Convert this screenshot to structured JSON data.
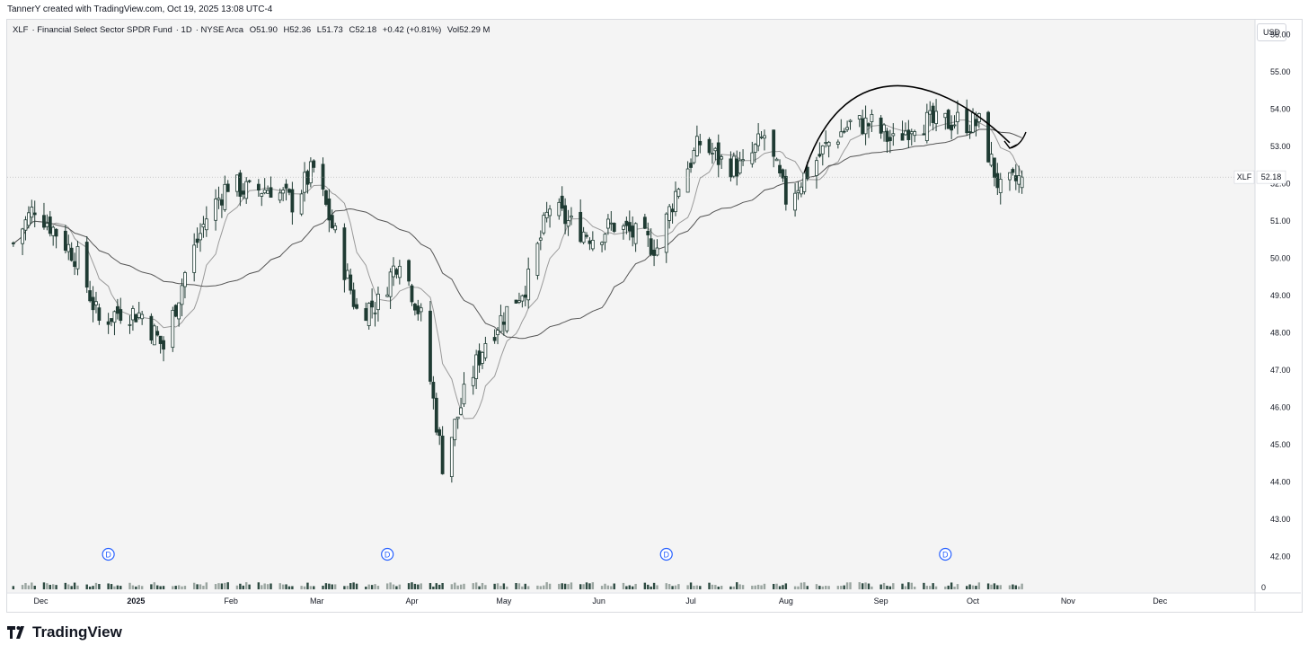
{
  "credit": "TannerY created with TradingView.com, Oct 19, 2025 13:08 UTC-4",
  "legend": {
    "symbol": "XLF",
    "name": "Financial Select Sector SPDR Fund",
    "interval": "1D",
    "exchange": "NYSE Arca",
    "open": "O51.90",
    "high": "H52.36",
    "low": "L51.73",
    "close": "C52.18",
    "change": "+0.42 (+0.81%)",
    "volume": "Vol52.29 M"
  },
  "currency_button": "USD",
  "price_badge": {
    "symbol": "XLF",
    "value": "52.18"
  },
  "brand": "TradingView",
  "dividend_marker_label": "D",
  "volume_axis_label": "0",
  "colors": {
    "up": "#ffffff",
    "down": "#1f3b33",
    "wick": "#1f3b33",
    "ma_fast": "#9a9a9a",
    "ma_slow": "#555555",
    "annotation": "#000000",
    "dividend": "#2962ff"
  },
  "chart_data": {
    "type": "candlestick",
    "series_name": "XLF",
    "ylim": [
      41.8,
      56.4
    ],
    "y_ticks": [
      "56.00",
      "55.00",
      "54.00",
      "53.00",
      "52.00",
      "51.00",
      "50.00",
      "49.00",
      "48.00",
      "47.00",
      "46.00",
      "45.00",
      "44.00",
      "43.00",
      "42.00"
    ],
    "x_ticks": [
      "Dec",
      "2025",
      "Feb",
      "Mar",
      "Apr",
      "May",
      "Jun",
      "Jul",
      "Aug",
      "Sep",
      "Oct",
      "Nov",
      "Dec"
    ],
    "x_tick_dates": [
      "2024-12-01",
      "2025-01-01",
      "2025-02-01",
      "2025-03-01",
      "2025-04-01",
      "2025-05-01",
      "2025-06-01",
      "2025-07-01",
      "2025-08-01",
      "2025-09-01",
      "2025-10-01",
      "2025-11-01",
      "2025-12-01"
    ],
    "x_range": [
      "2024-11-20",
      "2026-01-01"
    ],
    "last_close": 52.18,
    "closes_weekly": [
      {
        "date": "2024-11-22",
        "close": 50.4
      },
      {
        "date": "2024-11-29",
        "close": 51.4
      },
      {
        "date": "2024-12-06",
        "close": 50.7
      },
      {
        "date": "2024-12-13",
        "close": 50.0
      },
      {
        "date": "2024-12-20",
        "close": 48.3
      },
      {
        "date": "2024-12-27",
        "close": 48.6
      },
      {
        "date": "2025-01-03",
        "close": 48.5
      },
      {
        "date": "2025-01-10",
        "close": 47.6
      },
      {
        "date": "2025-01-17",
        "close": 49.6
      },
      {
        "date": "2025-01-24",
        "close": 51.1
      },
      {
        "date": "2025-01-31",
        "close": 52.0
      },
      {
        "date": "2025-02-07",
        "close": 51.8
      },
      {
        "date": "2025-02-14",
        "close": 51.9
      },
      {
        "date": "2025-02-21",
        "close": 51.5
      },
      {
        "date": "2025-02-28",
        "close": 52.4
      },
      {
        "date": "2025-03-07",
        "close": 50.6
      },
      {
        "date": "2025-03-14",
        "close": 48.6
      },
      {
        "date": "2025-03-21",
        "close": 48.8
      },
      {
        "date": "2025-03-28",
        "close": 50.1
      },
      {
        "date": "2025-04-04",
        "close": 48.4
      },
      {
        "date": "2025-04-11",
        "close": 44.5
      },
      {
        "date": "2025-04-18",
        "close": 46.3
      },
      {
        "date": "2025-04-25",
        "close": 47.8
      },
      {
        "date": "2025-05-02",
        "close": 48.6
      },
      {
        "date": "2025-05-09",
        "close": 49.4
      },
      {
        "date": "2025-05-16",
        "close": 51.4
      },
      {
        "date": "2025-05-23",
        "close": 50.9
      },
      {
        "date": "2025-05-30",
        "close": 50.6
      },
      {
        "date": "2025-06-06",
        "close": 50.9
      },
      {
        "date": "2025-06-13",
        "close": 50.6
      },
      {
        "date": "2025-06-20",
        "close": 50.3
      },
      {
        "date": "2025-06-27",
        "close": 52.0
      },
      {
        "date": "2025-07-04",
        "close": 53.1
      },
      {
        "date": "2025-07-11",
        "close": 52.6
      },
      {
        "date": "2025-07-18",
        "close": 52.4
      },
      {
        "date": "2025-07-25",
        "close": 53.3
      },
      {
        "date": "2025-08-01",
        "close": 51.6
      },
      {
        "date": "2025-08-08",
        "close": 52.3
      },
      {
        "date": "2025-08-15",
        "close": 53.1
      },
      {
        "date": "2025-08-22",
        "close": 53.6
      },
      {
        "date": "2025-08-29",
        "close": 53.6
      },
      {
        "date": "2025-09-05",
        "close": 53.1
      },
      {
        "date": "2025-09-12",
        "close": 53.7
      },
      {
        "date": "2025-09-19",
        "close": 53.6
      },
      {
        "date": "2025-09-26",
        "close": 53.7
      },
      {
        "date": "2025-10-03",
        "close": 53.6
      },
      {
        "date": "2025-10-10",
        "close": 51.8
      },
      {
        "date": "2025-10-17",
        "close": 52.18
      }
    ],
    "moving_averages": [
      {
        "name": "",
        "style": "fast"
      },
      {
        "name": "",
        "style": "slow"
      }
    ],
    "dividend_dates": [
      "2024-12-23",
      "2025-03-24",
      "2025-06-23",
      "2025-09-22"
    ],
    "annotation": {
      "type": "arc-with-arrow",
      "from_date": "2025-08-07",
      "to_date": "2025-10-13",
      "peak_price": 54.6
    }
  }
}
